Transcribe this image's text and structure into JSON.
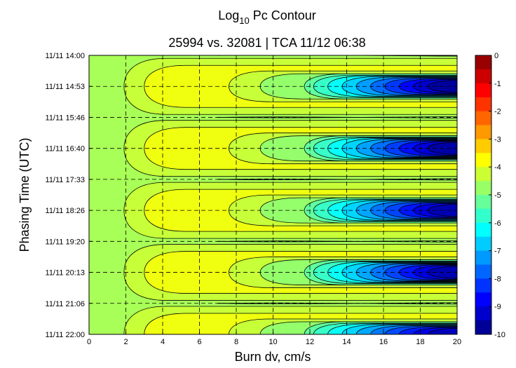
{
  "chart_data": {
    "type": "heatmap",
    "subtype": "filled-contour",
    "title_main": "Log",
    "title_sub": "10",
    "title_rest": " Pc Contour",
    "subtitle": "25994 vs. 32081 | TCA 11/12 06:38",
    "xlabel": "Burn dv, cm/s",
    "ylabel": "Phasing Time (UTC)",
    "xlim": [
      0,
      20
    ],
    "x_ticks": [
      "0",
      "2",
      "4",
      "6",
      "8",
      "10",
      "12",
      "14",
      "16",
      "18",
      "20"
    ],
    "y_ticks": [
      "11/11 14:00",
      "11/11 14:53",
      "11/11 15:46",
      "11/11 16:40",
      "11/11 17:33",
      "11/11 18:26",
      "11/11 19:20",
      "11/11 20:13",
      "11/11 21:06",
      "11/11 22:00"
    ],
    "grid": "dashed",
    "colorbar": {
      "range": [
        -10,
        0
      ],
      "ticks": [
        "0",
        "-1",
        "-2",
        "-3",
        "-4",
        "-5",
        "-6",
        "-7",
        "-8",
        "-9",
        "-10"
      ],
      "position": "right",
      "colormap": "jet"
    },
    "background_value": -4.6,
    "lobes": [
      {
        "center_time": "11/11 14:53",
        "tip_dv": 1.9,
        "min_value": -9.7
      },
      {
        "center_time": "11/11 16:40",
        "tip_dv": 1.9,
        "min_value": -9.6
      },
      {
        "center_time": "11/11 18:26",
        "tip_dv": 1.9,
        "min_value": -9.5
      },
      {
        "center_time": "11/11 20:13",
        "tip_dv": 1.9,
        "min_value": -9.5
      },
      {
        "center_time": "11/11 22:00",
        "tip_dv": 1.9,
        "min_value": -9.4
      }
    ]
  }
}
